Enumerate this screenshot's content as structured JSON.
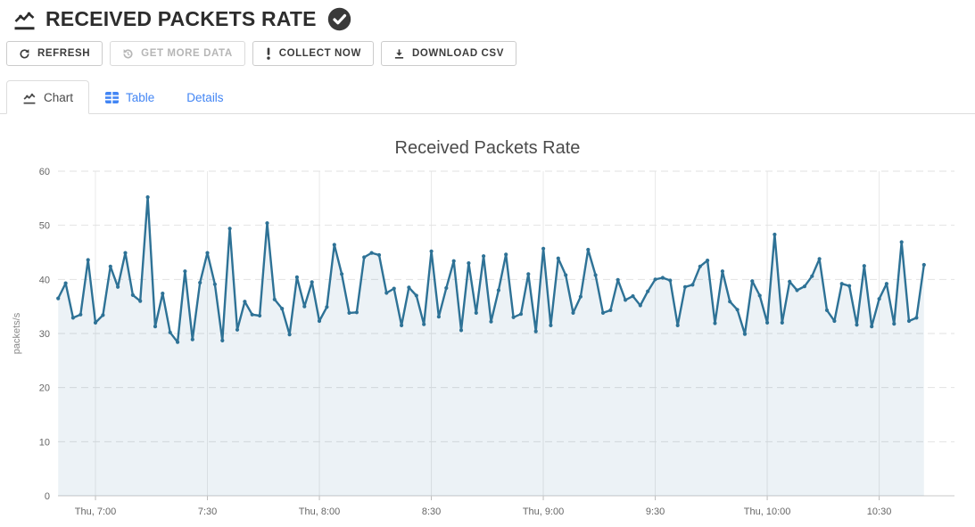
{
  "header": {
    "title": "RECEIVED PACKETS RATE",
    "title_icon": "line-chart-icon",
    "status_icon": "check-circle-icon"
  },
  "toolbar": {
    "buttons": [
      {
        "label": "REFRESH",
        "icon": "refresh-icon",
        "state": "enabled"
      },
      {
        "label": "GET MORE DATA",
        "icon": "history-icon",
        "state": "disabled"
      },
      {
        "label": "COLLECT NOW",
        "icon": "exclamation-icon",
        "state": "enabled"
      },
      {
        "label": "DOWNLOAD CSV",
        "icon": "download-icon",
        "state": "enabled"
      }
    ]
  },
  "tabs": [
    {
      "label": "Chart",
      "icon": "line-chart-icon",
      "state": "active"
    },
    {
      "label": "Table",
      "icon": "table-icon",
      "state": "inactive"
    },
    {
      "label": "Details",
      "icon": "",
      "state": "inactive"
    }
  ],
  "colors": {
    "line": "#2e7296",
    "area_fill_opacity": "0.09",
    "grid_dashed": "#e2e2e2",
    "grid_vertical": "#e9e9e9",
    "axis_line": "#c9c9c9",
    "tick_text": "#666666",
    "axis_title_text": "#888888",
    "tab_link_blue": "#4285f4",
    "badge_dark": "#3a3a3a"
  },
  "chart_data": {
    "type": "area",
    "title": "Received Packets Rate",
    "xlabel": "",
    "ylabel": "packets/s",
    "ylim": [
      0,
      60
    ],
    "y_ticks": [
      0,
      10,
      20,
      30,
      40,
      50,
      60
    ],
    "grid": true,
    "legend": false,
    "x_start": "Thu 6:50",
    "x_interval_minutes": 2,
    "x_ticks": [
      {
        "index": 5,
        "label": "Thu, 7:00"
      },
      {
        "index": 20,
        "label": "7:30"
      },
      {
        "index": 35,
        "label": "Thu, 8:00"
      },
      {
        "index": 50,
        "label": "8:30"
      },
      {
        "index": 65,
        "label": "Thu, 9:00"
      },
      {
        "index": 80,
        "label": "9:30"
      },
      {
        "index": 95,
        "label": "Thu, 10:00"
      },
      {
        "index": 110,
        "label": "10:30"
      }
    ],
    "values": [
      36.5,
      39.3,
      32.9,
      33.5,
      43.6,
      32.0,
      33.4,
      42.4,
      38.6,
      44.9,
      37.1,
      36.0,
      55.2,
      31.3,
      37.4,
      30.2,
      28.4,
      41.5,
      28.9,
      39.4,
      44.9,
      39.1,
      28.7,
      49.4,
      30.7,
      35.9,
      33.5,
      33.3,
      50.4,
      36.3,
      34.6,
      29.8,
      40.4,
      35.0,
      39.5,
      32.3,
      34.9,
      46.4,
      41.0,
      33.8,
      33.9,
      44.1,
      44.9,
      44.5,
      37.5,
      38.3,
      31.5,
      38.5,
      37.0,
      31.7,
      45.2,
      33.1,
      38.4,
      43.4,
      30.6,
      43.0,
      33.8,
      44.3,
      32.2,
      38.0,
      44.6,
      33.0,
      33.6,
      41.0,
      30.4,
      45.7,
      31.5,
      43.9,
      40.8,
      33.8,
      36.8,
      45.5,
      40.8,
      33.8,
      34.3,
      39.9,
      36.2,
      36.9,
      35.2,
      37.8,
      40.0,
      40.3,
      39.8,
      31.5,
      38.6,
      39.0,
      42.4,
      43.5,
      31.9,
      41.5,
      35.9,
      34.4,
      29.9,
      39.7,
      37.0,
      32.0,
      48.3,
      32.0,
      39.6,
      38.0,
      38.7,
      40.6,
      43.8,
      34.3,
      32.3,
      39.2,
      38.8,
      31.6,
      42.5,
      31.3,
      36.4,
      39.2,
      31.8,
      46.9,
      32.3,
      32.9,
      42.7
    ]
  }
}
